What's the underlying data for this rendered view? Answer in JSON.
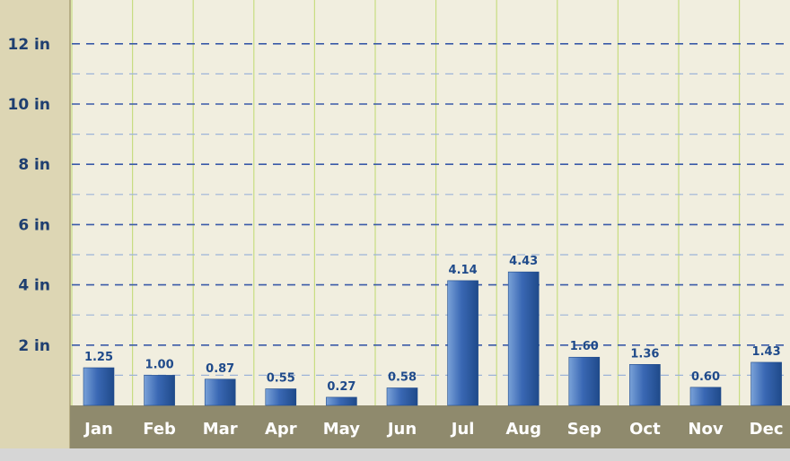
{
  "chart_data": {
    "type": "bar",
    "categories": [
      "Jan",
      "Feb",
      "Mar",
      "Apr",
      "May",
      "Jun",
      "Jul",
      "Aug",
      "Sep",
      "Oct",
      "Nov",
      "Dec"
    ],
    "values": [
      1.25,
      1.0,
      0.87,
      0.55,
      0.27,
      0.58,
      4.14,
      4.43,
      1.6,
      1.36,
      0.6,
      1.43
    ],
    "value_labels": [
      "1.25",
      "1.00",
      "0.87",
      "0.55",
      "0.27",
      "0.58",
      "4.14",
      "4.43",
      "1.60",
      "1.36",
      "0.60",
      "1.43"
    ],
    "yticks": [
      2,
      4,
      6,
      8,
      10,
      12
    ],
    "ytick_labels": [
      "2 in",
      "4 in",
      "6 in",
      "8 in",
      "10 in",
      "12 in"
    ],
    "ylim": [
      0,
      13.2
    ],
    "grid": true,
    "title": "",
    "xlabel": "",
    "ylabel": "",
    "colors": {
      "bar_dark": "#1f4a8a",
      "bar_light": "#7aa2d8",
      "plot_bg": "#f1eedf",
      "axis_bg": "#ddd6b4",
      "xaxis_bg": "#8f8a6d",
      "grid_major": "#3a5aa8",
      "grid_minor": "#9db3d8",
      "grid_vertical": "#c8dd82",
      "value_text": "#1f4a8a",
      "ytick_text": "#1f3f70",
      "xtick_text": "#ffffff"
    }
  }
}
